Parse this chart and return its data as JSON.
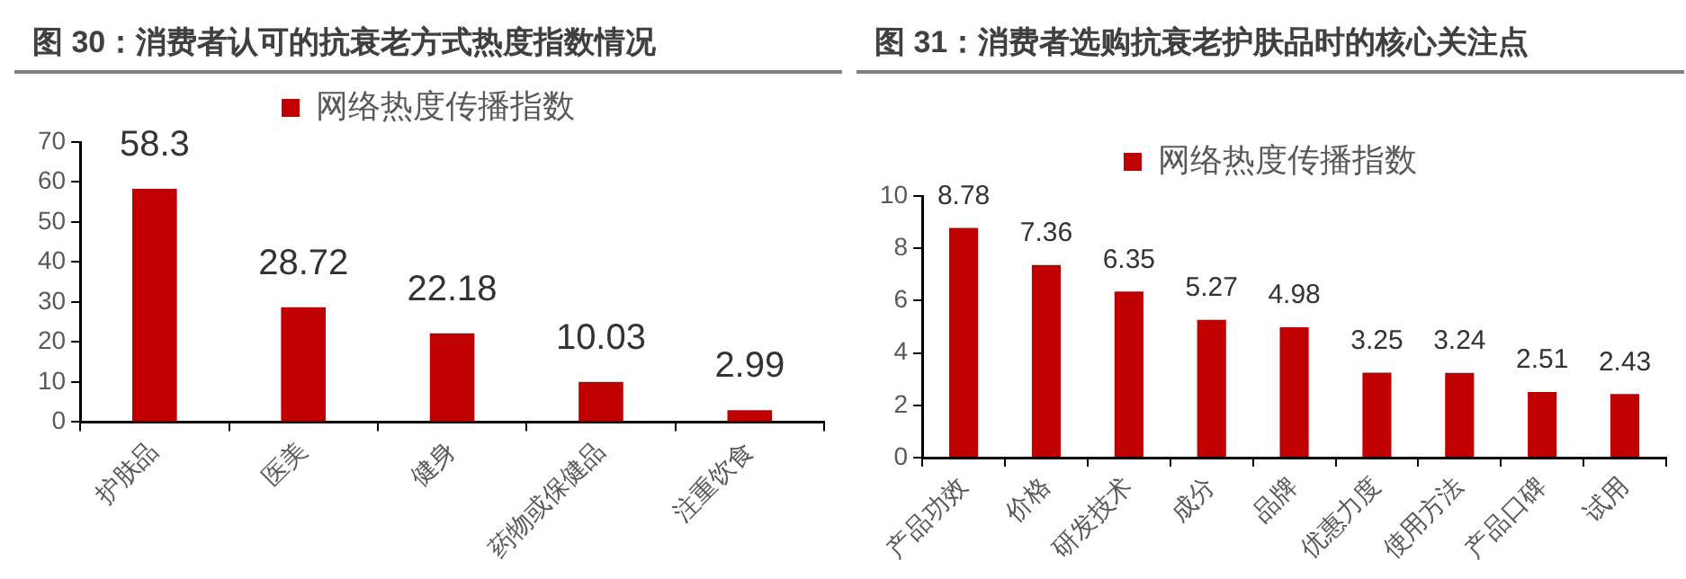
{
  "chart_data": [
    {
      "type": "bar",
      "title": "图 30：消费者认可的抗衰老方式热度指数情况",
      "categories": [
        "护肤品",
        "医美",
        "健身",
        "药物或保健品",
        "注重饮食"
      ],
      "series": [
        {
          "name": "网络热度传播指数",
          "color": "#c00000",
          "values": [
            58.3,
            28.72,
            22.18,
            10.03,
            2.99
          ]
        }
      ],
      "ylim": [
        0,
        70
      ],
      "yticks": [
        0,
        10,
        20,
        30,
        40,
        50,
        60,
        70
      ],
      "grid": false,
      "legend": "top",
      "data_labels": true
    },
    {
      "type": "bar",
      "title": "图 31：消费者选购抗衰老护肤品时的核心关注点",
      "categories": [
        "产品功效",
        "价格",
        "研发技术",
        "成分",
        "品牌",
        "优惠力度",
        "使用方法",
        "产品口碑",
        "试用"
      ],
      "series": [
        {
          "name": "网络热度传播指数",
          "color": "#c00000",
          "values": [
            8.78,
            7.36,
            6.35,
            5.27,
            4.98,
            3.25,
            3.24,
            2.51,
            2.43
          ]
        }
      ],
      "ylim": [
        0,
        10
      ],
      "yticks": [
        0,
        2,
        4,
        6,
        8,
        10
      ],
      "grid": false,
      "legend": "top",
      "data_labels": true
    }
  ]
}
